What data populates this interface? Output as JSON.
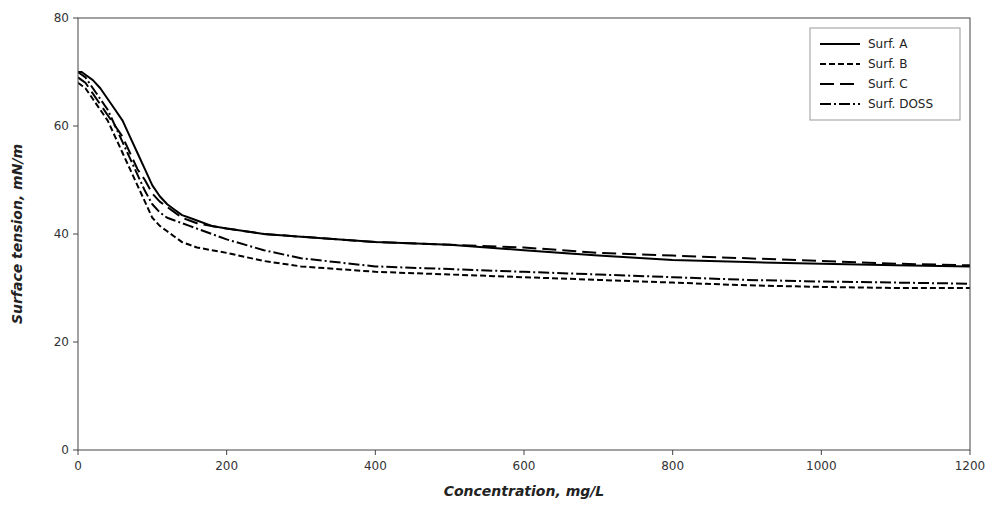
{
  "chart_data": {
    "type": "line",
    "xlabel": "Concentration, mg/L",
    "ylabel": "Surface tension, mN/m",
    "xlim": [
      0,
      1200
    ],
    "ylim": [
      0,
      80
    ],
    "xticks": [
      0,
      200,
      400,
      600,
      800,
      1000,
      1200
    ],
    "yticks": [
      0,
      20,
      40,
      60,
      80
    ],
    "grid": false,
    "legend": "upper right",
    "x": [
      0,
      5,
      10,
      20,
      30,
      40,
      50,
      60,
      70,
      80,
      90,
      100,
      110,
      120,
      130,
      140,
      150,
      160,
      180,
      200,
      250,
      300,
      400,
      500,
      600,
      700,
      800,
      900,
      1000,
      1100,
      1200
    ],
    "series": [
      {
        "name": "Surf. A",
        "color": "#000000",
        "line_style": "solid",
        "values": [
          70,
          70,
          69.5,
          68.5,
          67,
          65,
          63,
          61,
          58,
          55,
          52,
          49,
          47,
          45.5,
          44.5,
          43.5,
          43,
          42.5,
          41.5,
          41,
          40,
          39.5,
          38.5,
          38,
          37,
          36,
          35.2,
          34.8,
          34.5,
          34.2,
          34.0
        ]
      },
      {
        "name": "Surf. B",
        "color": "#000000",
        "line_style": "densely_dashed",
        "values": [
          68,
          67.5,
          67,
          65,
          63,
          61,
          58,
          55,
          52,
          49,
          46,
          43,
          41.5,
          40.5,
          39.5,
          38.5,
          38,
          37.5,
          37,
          36.5,
          35,
          34,
          33,
          32.5,
          32,
          31.5,
          31,
          30.5,
          30.2,
          30.0,
          30.0
        ]
      },
      {
        "name": "Surf. C",
        "color": "#000000",
        "line_style": "loosely_dashed",
        "values": [
          69,
          68.5,
          68,
          66,
          64,
          62,
          60,
          58,
          55,
          52,
          50,
          47.5,
          46,
          45,
          44,
          43,
          42.5,
          42,
          41.5,
          41,
          40,
          39.5,
          38.5,
          38,
          37.5,
          36.5,
          36,
          35.5,
          35,
          34.5,
          34.2
        ]
      },
      {
        "name": "Surf. DOSS",
        "color": "#000000",
        "line_style": "dashdot",
        "values": [
          70,
          69.5,
          69,
          67,
          65,
          63,
          60,
          57,
          54,
          51,
          48,
          45.5,
          44,
          43,
          42.5,
          42,
          41.5,
          41,
          40,
          39,
          37,
          35.5,
          34,
          33.5,
          33,
          32.5,
          32,
          31.5,
          31.2,
          31.0,
          30.8
        ]
      }
    ]
  }
}
